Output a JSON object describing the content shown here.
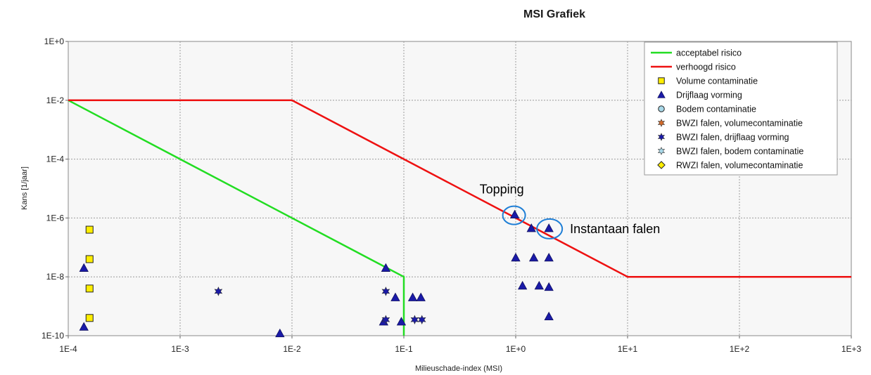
{
  "chart_data": {
    "type": "scatter",
    "title": "MSI Grafiek",
    "xlabel": "Milieuschade-index (MSI)",
    "ylabel": "Kans [1/jaar]",
    "x_scale": "log",
    "y_scale": "log",
    "xlim": [
      0.0001,
      1000
    ],
    "ylim": [
      1e-10,
      1
    ],
    "x_ticks": [
      "1E-4",
      "1E-3",
      "1E-2",
      "1E-1",
      "1E+0",
      "1E+1",
      "1E+2",
      "1E+3"
    ],
    "y_ticks": [
      "1E-10",
      "1E-8",
      "1E-6",
      "1E-4",
      "1E-2",
      "1E+0"
    ],
    "grid": true,
    "legend_position": "top-right",
    "lines": [
      {
        "name": "acceptabel risico",
        "color": "#22dd22",
        "points": [
          [
            0.0001,
            0.01
          ],
          [
            0.1,
            1e-08
          ],
          [
            0.1,
            1e-10
          ]
        ]
      },
      {
        "name": "verhoogd risico",
        "color": "#ee1111",
        "points": [
          [
            0.0001,
            0.01
          ],
          [
            0.01,
            0.01
          ],
          [
            10,
            1e-08
          ],
          [
            1000,
            1e-08
          ]
        ]
      }
    ],
    "series": [
      {
        "name": "Volume contaminatie",
        "marker": "square",
        "fill": "#ffee00",
        "points": [
          [
            0.000155,
            4e-07
          ],
          [
            0.000155,
            4e-08
          ],
          [
            0.000155,
            4e-09
          ],
          [
            0.000155,
            4e-10
          ]
        ]
      },
      {
        "name": "Drijflaag vorming",
        "marker": "triangle",
        "fill": "#1a1aa8",
        "points": [
          [
            0.000138,
            2e-08
          ],
          [
            0.000138,
            2e-10
          ],
          [
            0.0078,
            1.2e-10
          ],
          [
            0.069,
            2e-08
          ],
          [
            0.084,
            2e-09
          ],
          [
            0.066,
            3e-10
          ],
          [
            0.095,
            3e-10
          ],
          [
            0.12,
            2e-09
          ],
          [
            0.142,
            2e-09
          ],
          [
            0.98,
            1.3e-06
          ],
          [
            1.38,
            4.5e-07
          ],
          [
            1.98,
            4.5e-07
          ],
          [
            1.0,
            4.5e-08
          ],
          [
            1.45,
            4.5e-08
          ],
          [
            1.98,
            4.5e-08
          ],
          [
            1.15,
            5e-09
          ],
          [
            1.62,
            5e-09
          ],
          [
            1.98,
            4.5e-09
          ],
          [
            1.98,
            4.5e-10
          ]
        ]
      },
      {
        "name": "Bodem contaminatie",
        "marker": "circle",
        "fill": "#a8d8e8",
        "points": []
      },
      {
        "name": "BWZI falen, volumecontaminatie",
        "marker": "star",
        "fill": "#d26a2a",
        "points": []
      },
      {
        "name": "BWZI falen, drijflaag vorming",
        "marker": "star",
        "fill": "#1a1aa8",
        "points": [
          [
            0.0022,
            3.2e-09
          ],
          [
            0.069,
            3.2e-09
          ],
          [
            0.069,
            3.5e-10
          ],
          [
            0.125,
            3.5e-10
          ],
          [
            0.145,
            3.5e-10
          ]
        ]
      },
      {
        "name": "BWZI falen, bodem contaminatie",
        "marker": "star",
        "fill": "#a8d8e8",
        "points": []
      },
      {
        "name": "RWZI falen, volumecontaminatie",
        "marker": "diamond",
        "fill": "#ffee00",
        "points": []
      }
    ],
    "annotations": [
      {
        "text": "Topping",
        "x": 0.98,
        "y": 1.3e-06
      },
      {
        "text": "Instantaan falen",
        "x": 1.98,
        "y": 4.5e-07
      }
    ]
  }
}
